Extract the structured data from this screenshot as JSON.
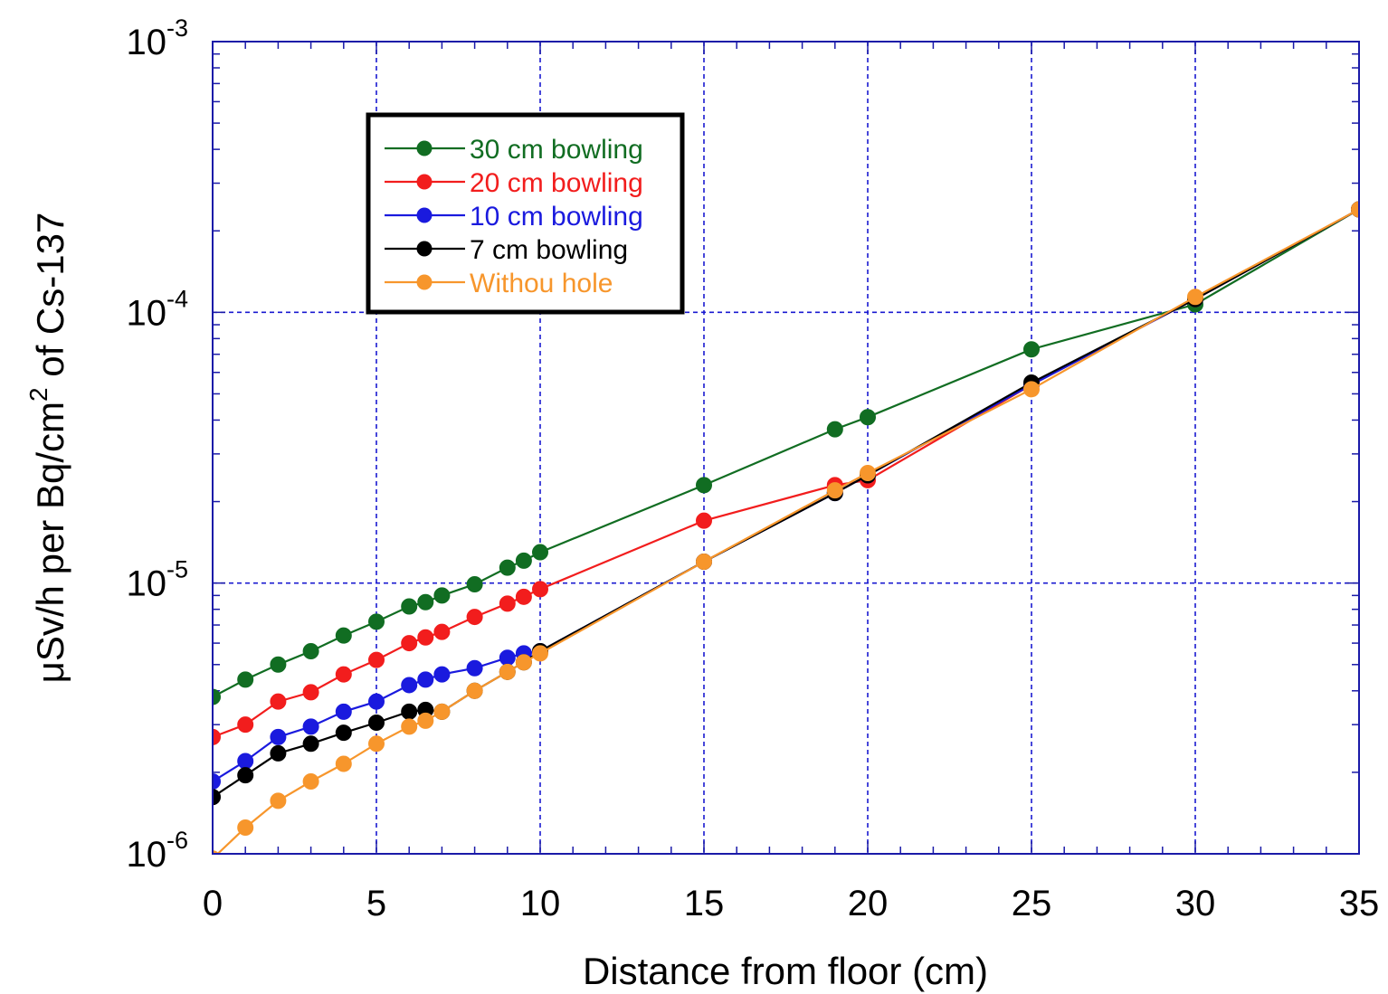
{
  "chart_data": {
    "type": "line",
    "xlabel": "Distance from floor (cm)",
    "ylabel_parts": {
      "pre": "μSv/h per Bq/cm",
      "sup": "2",
      "post": " of Cs-137"
    },
    "xlim": [
      0,
      35
    ],
    "ylim": [
      1e-06,
      0.001
    ],
    "yscale": "log",
    "grid": true,
    "legend_position": "top-left",
    "x_ticks": [
      "0",
      "5",
      "10",
      "15",
      "20",
      "25",
      "30",
      "35"
    ],
    "y_ticks": [
      {
        "base": "10",
        "exp": "-6"
      },
      {
        "base": "10",
        "exp": "-5"
      },
      {
        "base": "10",
        "exp": "-4"
      },
      {
        "base": "10",
        "exp": "-3"
      }
    ],
    "series": [
      {
        "name": "30 cm bowling",
        "color": "#116d22",
        "x": [
          0,
          1,
          2,
          3,
          4,
          5,
          6,
          6.5,
          7,
          8,
          9,
          9.5,
          10,
          15,
          19,
          20,
          25,
          30,
          35
        ],
        "y": [
          3.8e-06,
          4.4e-06,
          5e-06,
          5.6e-06,
          6.4e-06,
          7.2e-06,
          8.2e-06,
          8.5e-06,
          9e-06,
          9.9e-06,
          1.14e-05,
          1.21e-05,
          1.3e-05,
          2.3e-05,
          3.7e-05,
          4.1e-05,
          7.3e-05,
          0.000107,
          0.00024
        ]
      },
      {
        "name": "20 cm bowling",
        "color": "#f21d1d",
        "x": [
          0,
          1,
          2,
          3,
          4,
          5,
          6,
          6.5,
          7,
          8,
          9,
          9.5,
          10,
          15,
          19,
          20,
          25,
          30,
          35
        ],
        "y": [
          2.7e-06,
          3e-06,
          3.65e-06,
          3.95e-06,
          4.6e-06,
          5.2e-06,
          6e-06,
          6.3e-06,
          6.6e-06,
          7.5e-06,
          8.4e-06,
          8.9e-06,
          9.5e-06,
          1.7e-05,
          2.3e-05,
          2.4e-05,
          5.4e-05,
          0.000112,
          0.00024
        ]
      },
      {
        "name": "10 cm bowling",
        "color": "#1a1ade",
        "x": [
          0,
          1,
          2,
          3,
          4,
          5,
          6,
          6.5,
          7,
          8,
          9,
          9.5,
          10,
          15,
          19,
          20,
          25,
          30,
          35
        ],
        "y": [
          1.85e-06,
          2.2e-06,
          2.7e-06,
          2.95e-06,
          3.35e-06,
          3.65e-06,
          4.2e-06,
          4.4e-06,
          4.6e-06,
          4.85e-06,
          5.3e-06,
          5.5e-06,
          5.6e-06,
          1.2e-05,
          2.15e-05,
          2.5e-05,
          5.4e-05,
          0.000112,
          0.00024
        ]
      },
      {
        "name": "7 cm bowling",
        "color": "#000000",
        "x": [
          0,
          1,
          2,
          3,
          4,
          5,
          6,
          6.5,
          7,
          8,
          9,
          9.5,
          10,
          15,
          19,
          20,
          25,
          30,
          35
        ],
        "y": [
          1.62e-06,
          1.95e-06,
          2.35e-06,
          2.55e-06,
          2.8e-06,
          3.05e-06,
          3.35e-06,
          3.4e-06,
          3.35e-06,
          4e-06,
          4.7e-06,
          5.1e-06,
          5.6e-06,
          1.2e-05,
          2.15e-05,
          2.5e-05,
          5.5e-05,
          0.000112,
          0.00024
        ]
      },
      {
        "name": "Withou hole",
        "color": "#f7962c",
        "x": [
          0,
          1,
          2,
          3,
          4,
          5,
          6,
          6.5,
          7,
          8,
          9,
          9.5,
          10,
          15,
          19,
          20,
          25,
          30,
          35
        ],
        "y": [
          9.6e-07,
          1.25e-06,
          1.57e-06,
          1.85e-06,
          2.15e-06,
          2.55e-06,
          2.95e-06,
          3.1e-06,
          3.35e-06,
          4e-06,
          4.7e-06,
          5.1e-06,
          5.5e-06,
          1.2e-05,
          2.2e-05,
          2.55e-05,
          5.2e-05,
          0.000114,
          0.00024
        ]
      }
    ]
  }
}
